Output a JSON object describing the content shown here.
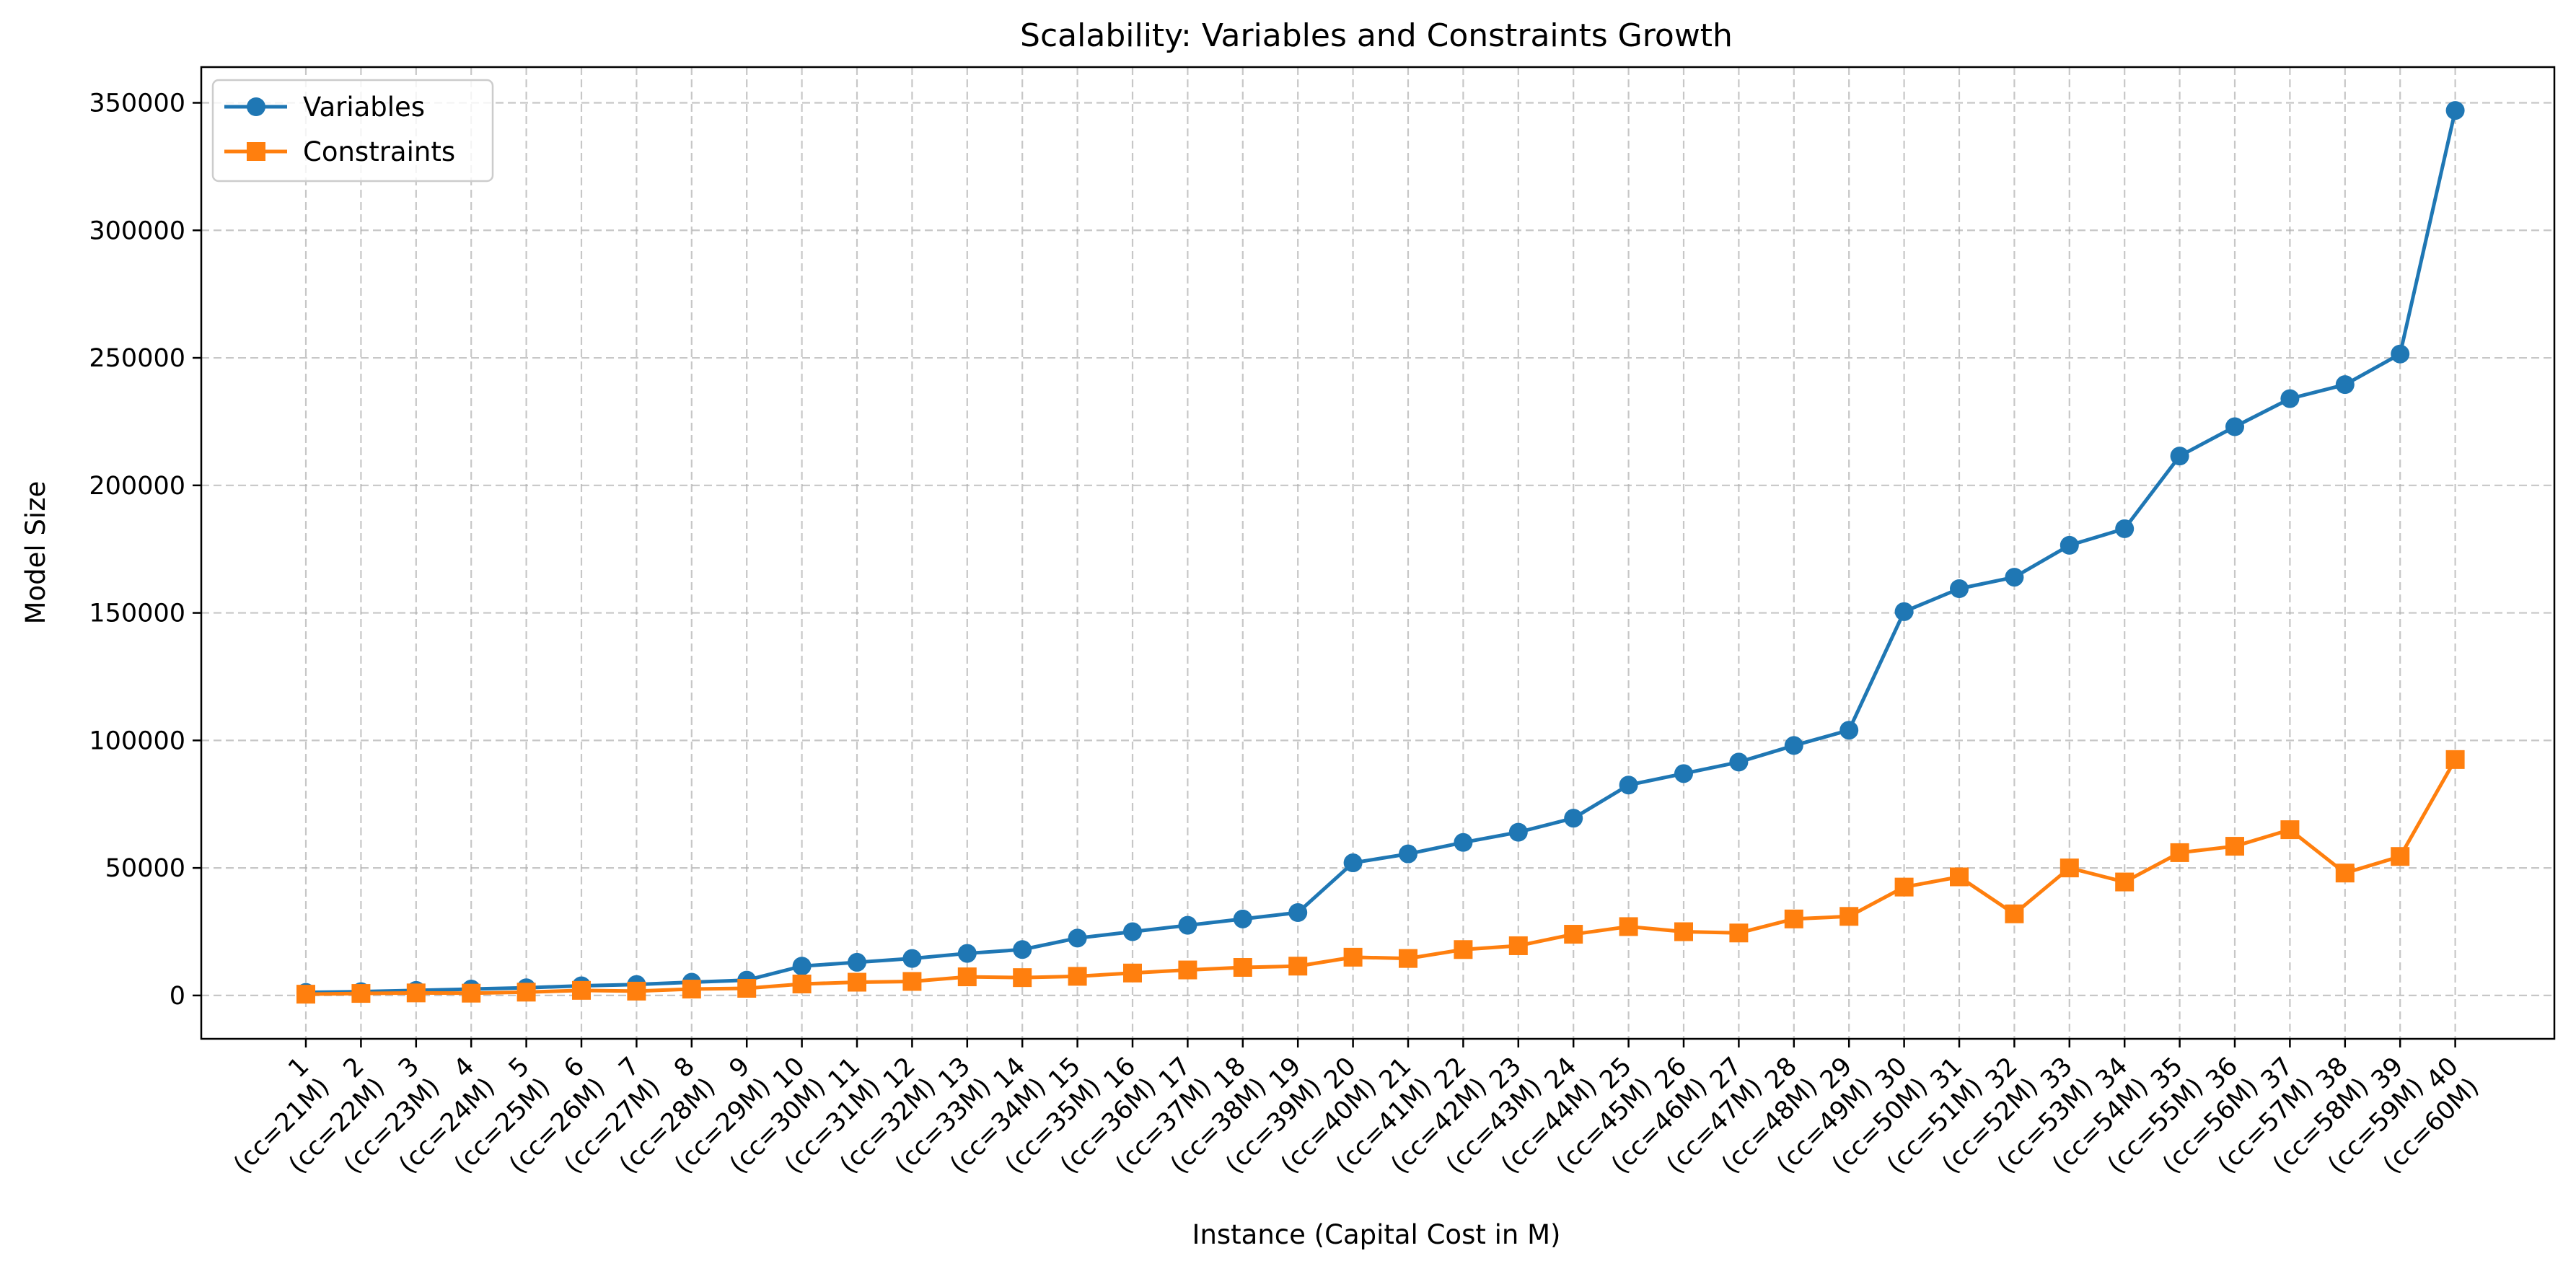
{
  "chart_data": {
    "type": "line",
    "title": "Scalability: Variables and Constraints Growth",
    "xlabel": "Instance (Capital Cost in M)",
    "ylabel": "Model Size",
    "categories": [
      "1\n(cc=21M)",
      "2\n(cc=22M)",
      "3\n(cc=23M)",
      "4\n(cc=24M)",
      "5\n(cc=25M)",
      "6\n(cc=26M)",
      "7\n(cc=27M)",
      "8\n(cc=28M)",
      "9\n(cc=29M)",
      "10\n(cc=30M)",
      "11\n(cc=31M)",
      "12\n(cc=32M)",
      "13\n(cc=33M)",
      "14\n(cc=34M)",
      "15\n(cc=35M)",
      "16\n(cc=36M)",
      "17\n(cc=37M)",
      "18\n(cc=38M)",
      "19\n(cc=39M)",
      "20\n(cc=40M)",
      "21\n(cc=41M)",
      "22\n(cc=42M)",
      "23\n(cc=43M)",
      "24\n(cc=44M)",
      "25\n(cc=45M)",
      "26\n(cc=46M)",
      "27\n(cc=47M)",
      "28\n(cc=48M)",
      "29\n(cc=49M)",
      "30\n(cc=50M)",
      "31\n(cc=51M)",
      "32\n(cc=52M)",
      "33\n(cc=53M)",
      "34\n(cc=54M)",
      "35\n(cc=55M)",
      "36\n(cc=56M)",
      "37\n(cc=57M)",
      "38\n(cc=58M)",
      "39\n(cc=59M)",
      "40\n(cc=60M)"
    ],
    "series": [
      {
        "name": "Variables",
        "color": "#1f77b4",
        "marker": "circle",
        "values": [
          1200,
          1500,
          2000,
          2500,
          3000,
          3800,
          4300,
          5200,
          6000,
          11500,
          13000,
          14500,
          16500,
          18000,
          22500,
          25000,
          27500,
          30000,
          32500,
          52000,
          55500,
          60000,
          64000,
          69500,
          82500,
          87000,
          91500,
          98000,
          104000,
          150500,
          159500,
          164000,
          176500,
          183000,
          211500,
          223000,
          234000,
          239500,
          251500,
          347000
        ]
      },
      {
        "name": "Constraints",
        "color": "#ff7f0e",
        "marker": "square",
        "values": [
          500,
          800,
          1000,
          900,
          1300,
          2000,
          1700,
          2500,
          2800,
          4500,
          5200,
          5500,
          7300,
          7000,
          7500,
          8800,
          10000,
          11000,
          11500,
          15000,
          14500,
          18000,
          19500,
          24000,
          27000,
          25000,
          24500,
          30000,
          31000,
          42500,
          46500,
          32000,
          50000,
          44500,
          56000,
          58500,
          65000,
          48000,
          54500,
          92500
        ]
      }
    ],
    "yticks": [
      0,
      50000,
      100000,
      150000,
      200000,
      250000,
      300000,
      350000
    ],
    "ylim": [
      -17000,
      364000
    ],
    "grid": true,
    "legend": "top-left"
  }
}
